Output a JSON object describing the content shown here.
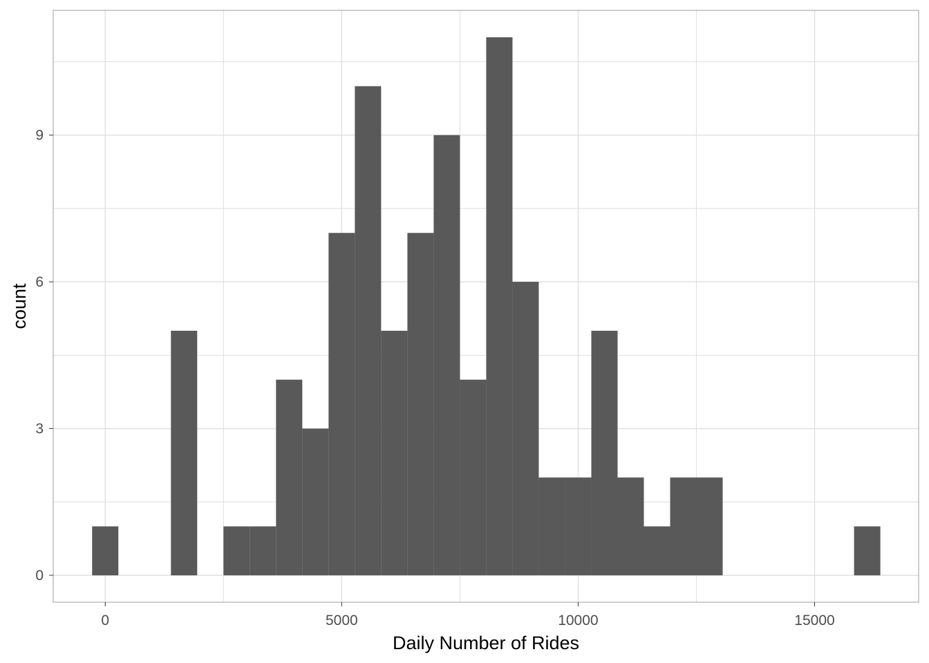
{
  "chart_data": {
    "type": "bar",
    "title": "",
    "xlabel": "Daily Number of Rides",
    "ylabel": "count",
    "bin_width": 555.6,
    "bins": [
      {
        "x": 0,
        "count": 1
      },
      {
        "x": 555.6,
        "count": 0
      },
      {
        "x": 1111.2,
        "count": 0
      },
      {
        "x": 1666.8,
        "count": 5
      },
      {
        "x": 2222.4,
        "count": 0
      },
      {
        "x": 2778,
        "count": 1
      },
      {
        "x": 3333.6,
        "count": 1
      },
      {
        "x": 3889.2,
        "count": 4
      },
      {
        "x": 4444.8,
        "count": 3
      },
      {
        "x": 5000.4,
        "count": 7
      },
      {
        "x": 5556,
        "count": 10
      },
      {
        "x": 6111.6,
        "count": 5
      },
      {
        "x": 6667.2,
        "count": 7
      },
      {
        "x": 7222.8,
        "count": 9
      },
      {
        "x": 7778.4,
        "count": 4
      },
      {
        "x": 8334,
        "count": 11
      },
      {
        "x": 8889.6,
        "count": 6
      },
      {
        "x": 9445.2,
        "count": 2
      },
      {
        "x": 10000.8,
        "count": 2
      },
      {
        "x": 10556.4,
        "count": 5
      },
      {
        "x": 11112,
        "count": 2
      },
      {
        "x": 11667.6,
        "count": 1
      },
      {
        "x": 12223.2,
        "count": 2
      },
      {
        "x": 12778.8,
        "count": 2
      },
      {
        "x": 13334.4,
        "count": 0
      },
      {
        "x": 13890,
        "count": 0
      },
      {
        "x": 14445.6,
        "count": 0
      },
      {
        "x": 15001.2,
        "count": 0
      },
      {
        "x": 15556.8,
        "count": 0
      },
      {
        "x": 16112.4,
        "count": 1
      }
    ],
    "xlim": [
      -1100,
      17200
    ],
    "ylim": [
      -0.55,
      11.55
    ],
    "x_ticks": [
      0,
      5000,
      10000,
      15000
    ],
    "x_tick_labels": [
      "0",
      "5000",
      "10000",
      "15000"
    ],
    "y_ticks": [
      0,
      3,
      6,
      9
    ],
    "y_tick_labels": [
      "0",
      "3",
      "6",
      "9"
    ],
    "bar_color": "#595959",
    "grid": true,
    "grid_color": "#dedede",
    "panel_border_color": "#b3b3b3",
    "background": "#ffffff",
    "legend": "none"
  }
}
